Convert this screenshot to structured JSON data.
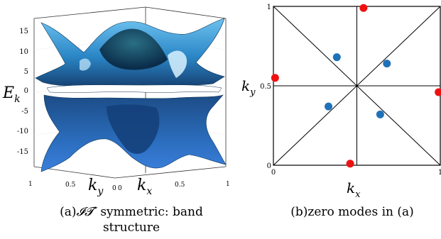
{
  "left_panel": {
    "caption_tag": "(a)",
    "caption_math": "𝓘𝓣′",
    "caption_line1": " symmetric: band",
    "caption_line2": "structure",
    "zlabel_main": "E",
    "zlabel_sub": "k",
    "zticks": [
      "15",
      "10",
      "5",
      "0",
      "-5",
      "-10",
      "-15"
    ],
    "ky_label_main": "k",
    "ky_label_sub": "y",
    "kx_label_main": "k",
    "kx_label_sub": "x",
    "ky_ticks": [
      "1",
      "0.5",
      "0"
    ],
    "kx_ticks": [
      "0",
      "0.5",
      "1"
    ],
    "surface_colors": {
      "light": "#5ab3e6",
      "mid": "#2a7fc0",
      "dark": "#123f72",
      "deep": "#0a2547"
    }
  },
  "chart_data": {
    "type": "scatter",
    "title": "",
    "xlabel": "k_x",
    "ylabel": "k_y",
    "xlim": [
      0,
      1
    ],
    "ylim": [
      0,
      1
    ],
    "x_ticks": [
      "0",
      "1"
    ],
    "y_ticks": [
      "0",
      "0.5",
      "1"
    ],
    "grid": false,
    "reference_lines": [
      {
        "x": [
          0,
          1
        ],
        "y": [
          0,
          1
        ]
      },
      {
        "x": [
          0,
          1
        ],
        "y": [
          1,
          0
        ]
      },
      {
        "x": [
          0.5,
          0.5
        ],
        "y": [
          0,
          1
        ]
      },
      {
        "x": [
          0,
          1
        ],
        "y": [
          0.5,
          0.5
        ]
      }
    ],
    "series": [
      {
        "color": "#ee1111",
        "points": [
          [
            0.54,
            0.99
          ],
          [
            0.01,
            0.55
          ],
          [
            0.99,
            0.46
          ],
          [
            0.46,
            0.01
          ]
        ]
      },
      {
        "color": "#1f72b8",
        "points": [
          [
            0.38,
            0.68
          ],
          [
            0.68,
            0.64
          ],
          [
            0.33,
            0.37
          ],
          [
            0.64,
            0.32
          ]
        ]
      }
    ]
  },
  "right_panel": {
    "caption_tag": "(b)",
    "caption_text": "zero modes in (a)",
    "xlabel_main": "k",
    "xlabel_sub": "x",
    "ylabel_main": "k",
    "ylabel_sub": "y"
  }
}
